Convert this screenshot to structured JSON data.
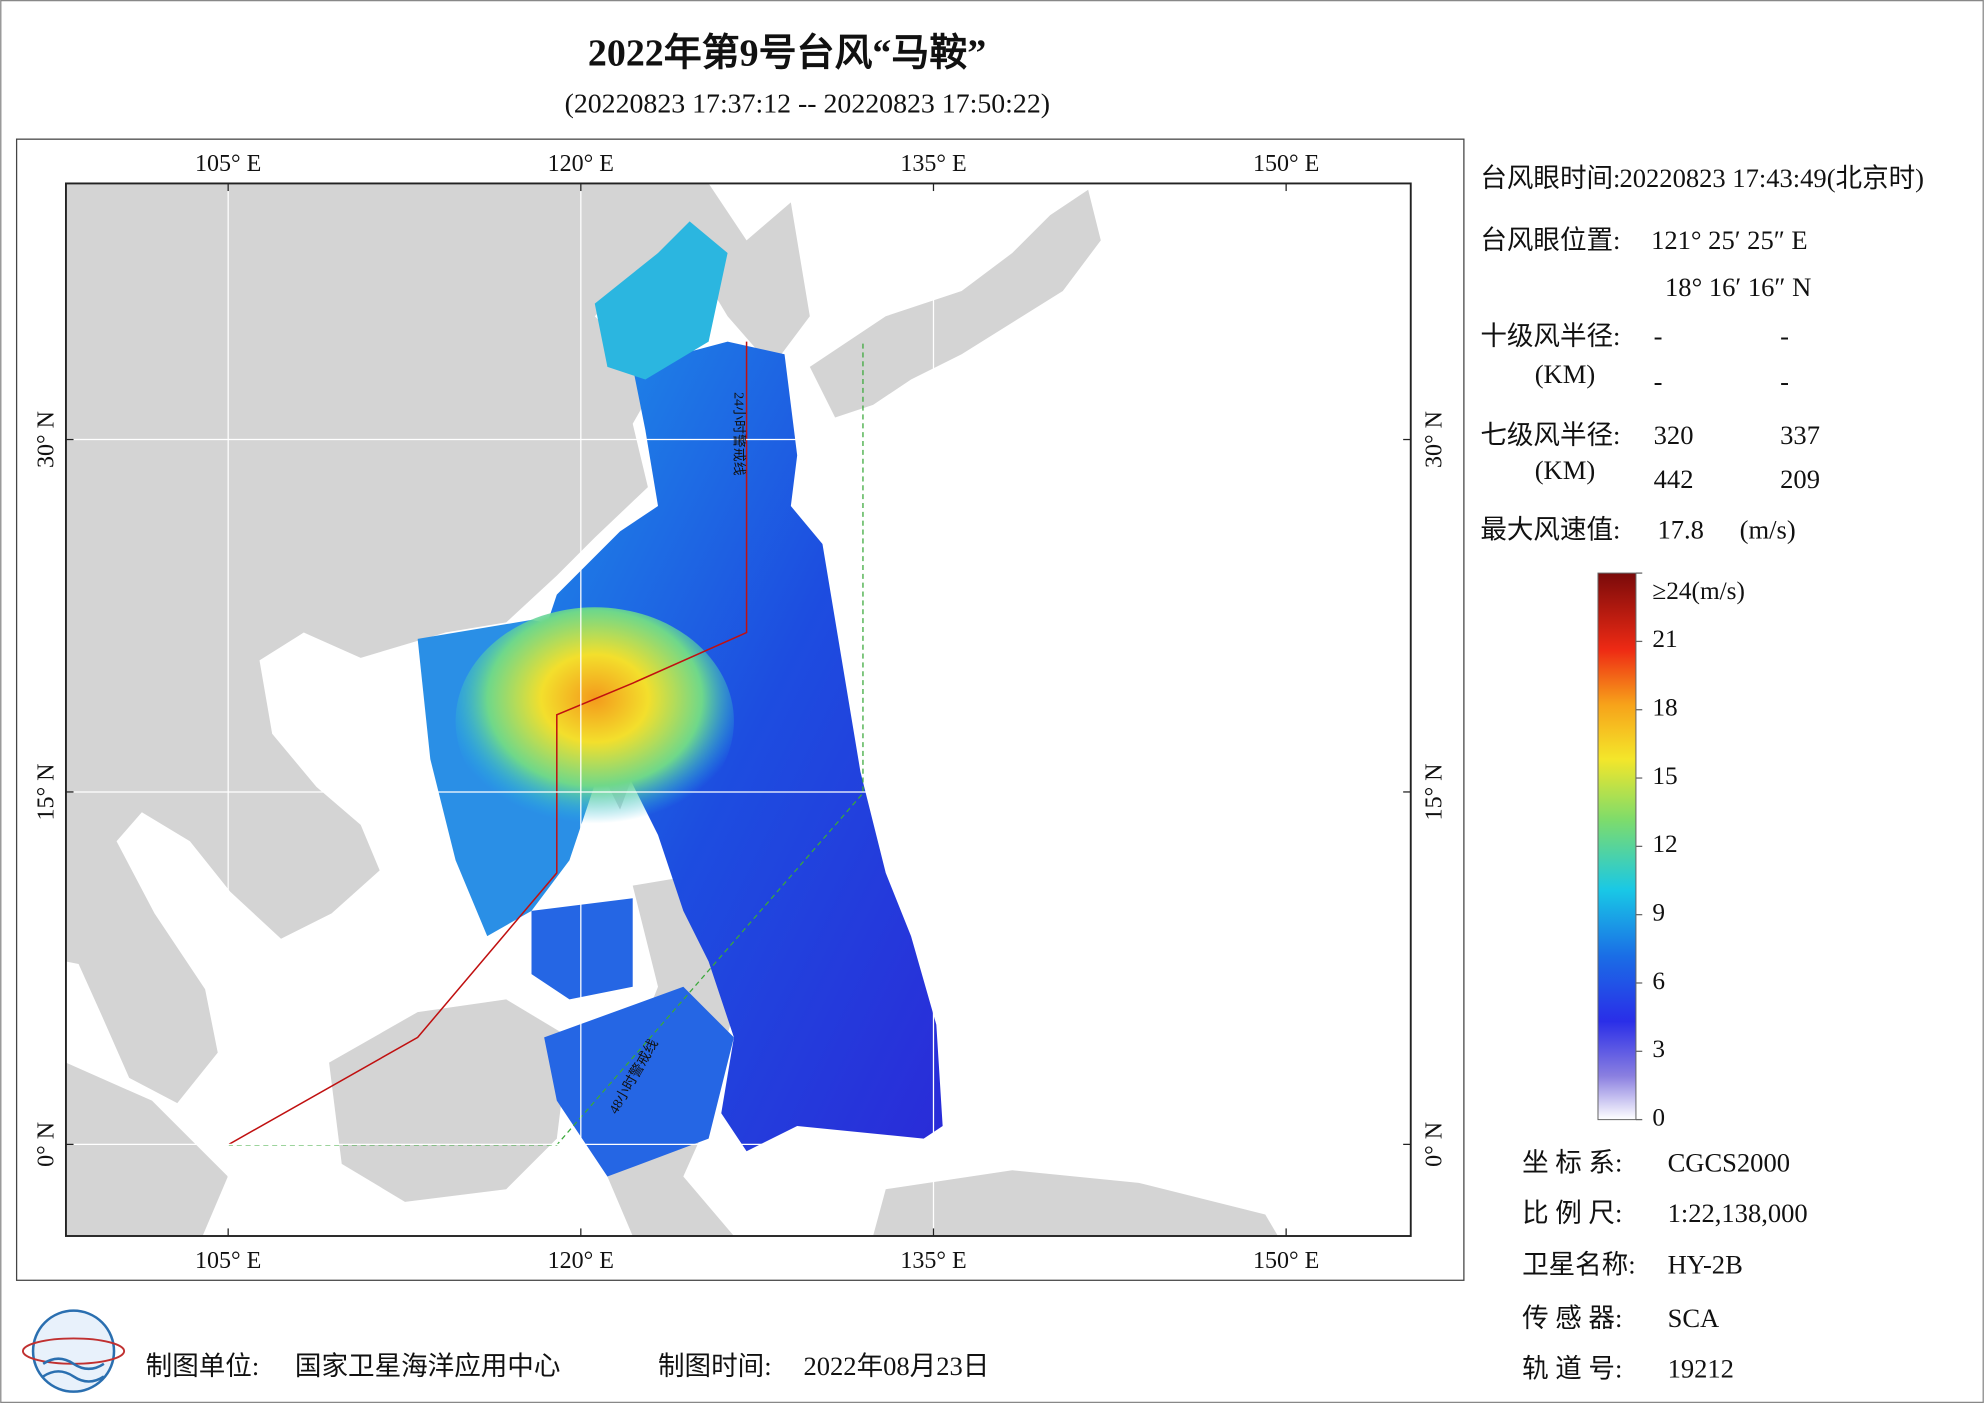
{
  "header": {
    "title": "2022年第9号台风“马鞍”",
    "subtitle": "(20220823 17:37:12 -- 20220823 17:50:22)"
  },
  "map": {
    "xlim": [
      98.1,
      155.3
    ],
    "ylim": [
      -3.9,
      40.9
    ],
    "xticks": [
      {
        "value": 105,
        "label": "105° E"
      },
      {
        "value": 120,
        "label": "120° E"
      },
      {
        "value": 135,
        "label": "135° E"
      },
      {
        "value": 150,
        "label": "150° E"
      }
    ],
    "yticks": [
      {
        "value": 0,
        "label": "0° N"
      },
      {
        "value": 15,
        "label": "15° N"
      },
      {
        "value": 30,
        "label": "30° N"
      }
    ],
    "annotations": [
      "24小时警戒线",
      "48小时警戒线"
    ]
  },
  "info": {
    "eye_time": {
      "label": "台风眼时间:",
      "value": "20220823 17:43:49(北京时)"
    },
    "eye_position": {
      "label": "台风眼位置:",
      "lon": "121° 25′ 25″ E",
      "lat": "18° 16′ 16″ N"
    },
    "r10": {
      "label": "十级风半径:",
      "unit": "(KM)",
      "values": [
        "-",
        "-",
        "-",
        "-"
      ]
    },
    "r7": {
      "label": "七级风半径:",
      "unit": "(KM)",
      "values": [
        "320",
        "337",
        "442",
        "209"
      ]
    },
    "max_wind": {
      "label": "最大风速值:",
      "value": "17.8",
      "unit": "(m/s)"
    }
  },
  "colorbar": {
    "lim": [
      0,
      24
    ],
    "ticks": [
      0,
      3,
      6,
      9,
      12,
      15,
      18,
      21,
      {
        "value": 24,
        "label": "≥24(m/s)"
      }
    ]
  },
  "metadata": [
    {
      "label": "坐 标 系:",
      "value": "CGCS2000"
    },
    {
      "label": "比 例 尺:",
      "value": "1:22,138,000"
    },
    {
      "label": "卫星名称:",
      "value": "HY-2B"
    },
    {
      "label": "传 感 器:",
      "value": "SCA"
    },
    {
      "label": "轨 道 号:",
      "value": "19212"
    }
  ],
  "footer": {
    "unit_label": "制图单位:",
    "unit": "国家卫星海洋应用中心",
    "time_label": "制图时间:",
    "time": "2022年08月23日"
  }
}
